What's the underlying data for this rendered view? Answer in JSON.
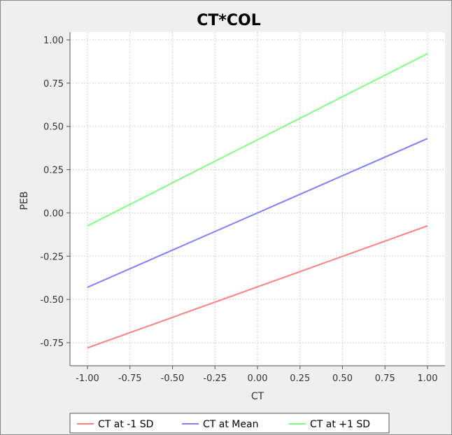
{
  "chart_data": {
    "type": "line",
    "title": "CT*COL",
    "xlabel": "CT",
    "ylabel": "PEB",
    "xlim": [
      -1.0,
      1.0
    ],
    "ylim": [
      -0.875,
      1.0
    ],
    "x_ticks": [
      "-1.00",
      "-0.75",
      "-0.50",
      "-0.25",
      "0.00",
      "0.25",
      "0.50",
      "0.75",
      "1.00"
    ],
    "y_ticks": [
      "1.00",
      "0.75",
      "0.50",
      "0.25",
      "0.00",
      "-0.25",
      "-0.50",
      "-0.75"
    ],
    "grid": true,
    "legend_position": "bottom",
    "series": [
      {
        "name": "CT at -1 SD",
        "color": "#ff8080",
        "x": [
          -1.0,
          1.0
        ],
        "y": [
          -0.78,
          -0.075
        ]
      },
      {
        "name": "CT at Mean",
        "color": "#8080ff",
        "x": [
          -1.0,
          1.0
        ],
        "y": [
          -0.43,
          0.43
        ]
      },
      {
        "name": "CT at +1 SD",
        "color": "#80ff80",
        "x": [
          -1.0,
          1.0
        ],
        "y": [
          -0.075,
          0.92
        ]
      }
    ]
  }
}
